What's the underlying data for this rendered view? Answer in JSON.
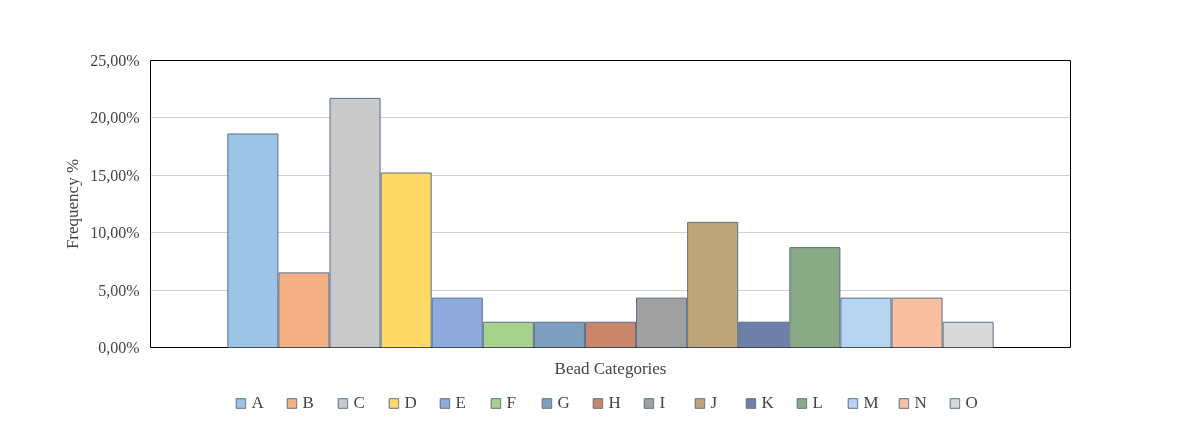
{
  "chart_data": {
    "type": "bar",
    "xlabel": "Bead Categories",
    "ylabel": "Frequency %",
    "categories": [
      null
    ],
    "ylim": [
      0,
      25
    ],
    "yticks": [
      {
        "value": 0,
        "label": "0,00%"
      },
      {
        "value": 5,
        "label": "5,00%"
      },
      {
        "value": 10,
        "label": "10,00%"
      },
      {
        "value": 15,
        "label": "15,00%"
      },
      {
        "value": 20,
        "label": "20,00%"
      },
      {
        "value": 25,
        "label": "25,00%"
      }
    ],
    "grid": "y",
    "legend": "bottom",
    "series": [
      {
        "name": "A",
        "color": "#9dc3e6",
        "values": [
          18.6
        ]
      },
      {
        "name": "B",
        "color": "#f4b183",
        "values": [
          6.5
        ]
      },
      {
        "name": "C",
        "color": "#c9c9c9",
        "values": [
          21.7
        ]
      },
      {
        "name": "D",
        "color": "#ffd966",
        "values": [
          15.2
        ]
      },
      {
        "name": "E",
        "color": "#8faadc",
        "values": [
          4.3
        ]
      },
      {
        "name": "F",
        "color": "#a9d18e",
        "values": [
          2.2
        ]
      },
      {
        "name": "G",
        "color": "#7f9fbf",
        "values": [
          2.2
        ]
      },
      {
        "name": "H",
        "color": "#c9866a",
        "values": [
          2.2
        ]
      },
      {
        "name": "I",
        "color": "#a0a0a0",
        "values": [
          4.3
        ]
      },
      {
        "name": "J",
        "color": "#bfa57a",
        "values": [
          10.9
        ]
      },
      {
        "name": "K",
        "color": "#6f7fa8",
        "values": [
          2.2
        ]
      },
      {
        "name": "L",
        "color": "#8aaa86",
        "values": [
          8.7
        ]
      },
      {
        "name": "M",
        "color": "#b4d4f0",
        "values": [
          4.3
        ]
      },
      {
        "name": "N",
        "color": "#f8c0a0",
        "values": [
          4.3
        ]
      },
      {
        "name": "O",
        "color": "#d9d9d9",
        "values": [
          2.2
        ]
      }
    ]
  }
}
